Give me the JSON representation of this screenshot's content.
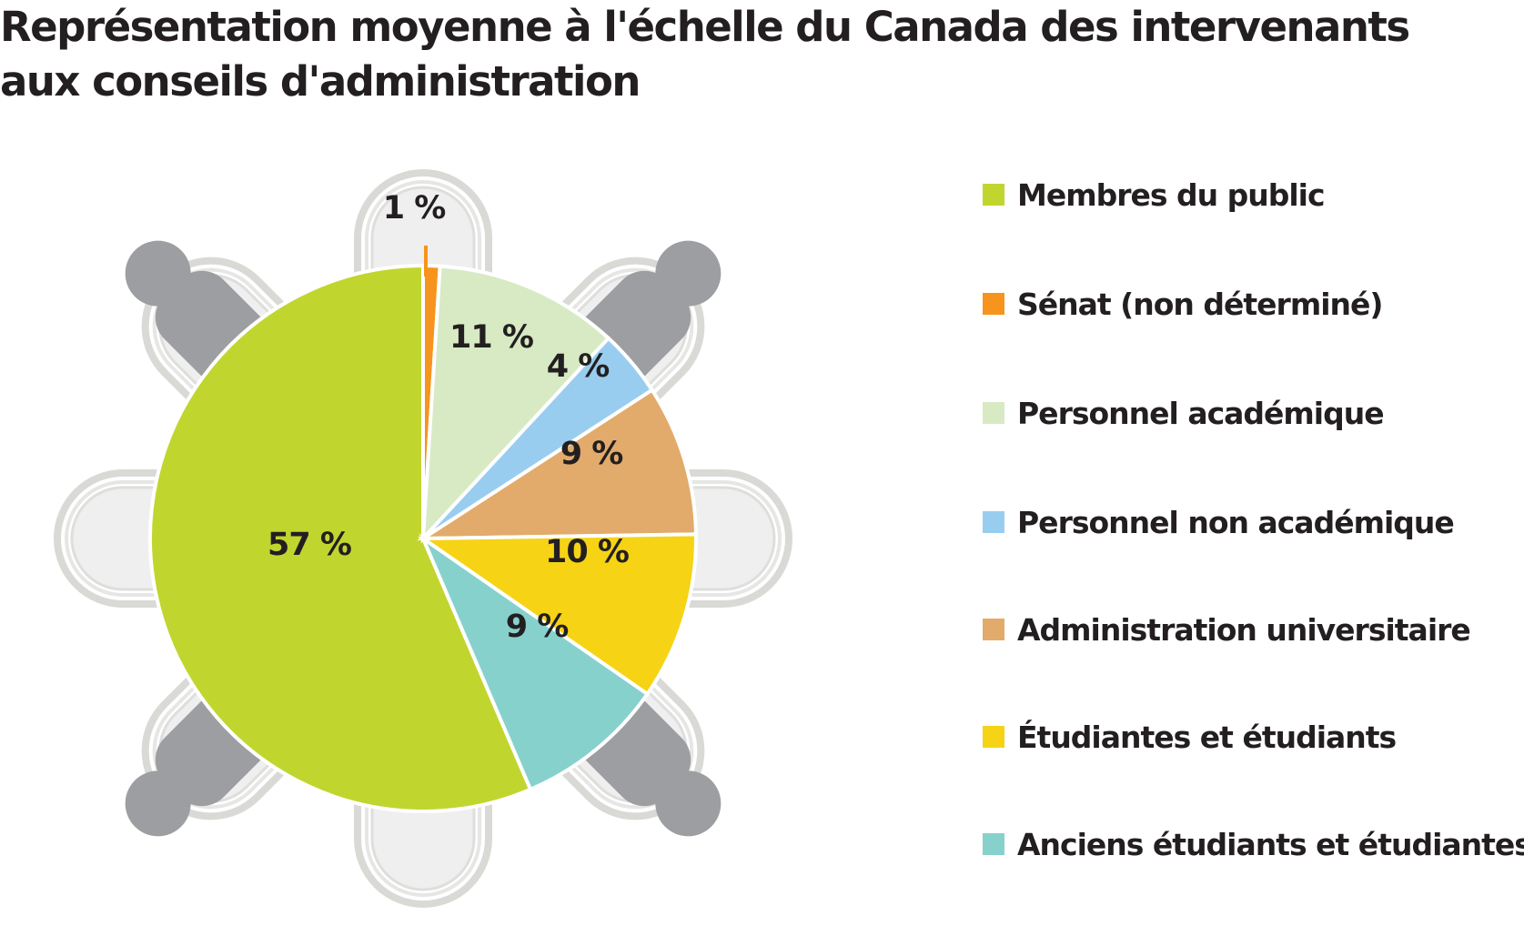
{
  "chart_data": {
    "type": "pie",
    "title": "Représentation moyenne à l'échelle du Canada des intervenants aux conseils d'administration",
    "legend_position": "right",
    "slices": [
      {
        "label": "Membres du public",
        "value": 57,
        "value_label": "57 %",
        "color": "#c1d52f"
      },
      {
        "label": "Sénat (non déterminé)",
        "value": 1,
        "value_label": "1 %",
        "color": "#f7941d"
      },
      {
        "label": "Personnel académique",
        "value": 11,
        "value_label": "11 %",
        "color": "#d7eac4"
      },
      {
        "label": "Personnel non académique",
        "value": 4,
        "value_label": "4 %",
        "color": "#99cdf0"
      },
      {
        "label": "Administration universitaire",
        "value": 9,
        "value_label": "9 %",
        "color": "#e2ab6b"
      },
      {
        "label": "Étudiantes et étudiants",
        "value": 10,
        "value_label": "10 %",
        "color": "#f6d315"
      },
      {
        "label": "Anciens étudiants et étudiantes",
        "value": 9,
        "value_label": "9 %",
        "color": "#87d1cd"
      }
    ]
  }
}
